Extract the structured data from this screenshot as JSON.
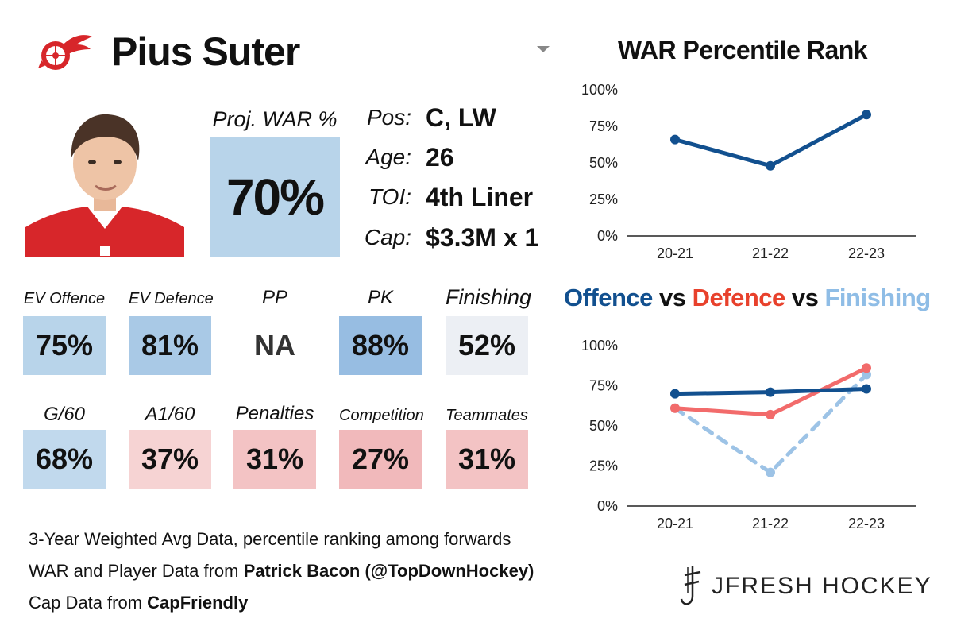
{
  "player": {
    "name": "Pius Suter",
    "team_logo": "red-wings-logo-icon",
    "headshot": "player-headshot"
  },
  "proj_war": {
    "label": "Proj. WAR %",
    "value": "70%",
    "color": "#b8d4ea"
  },
  "info": [
    {
      "label": "Pos:",
      "value": "C, LW"
    },
    {
      "label": "Age:",
      "value": "26"
    },
    {
      "label": "TOI:",
      "value": "4th Liner"
    },
    {
      "label": "Cap:",
      "value": "$3.3M x 1"
    }
  ],
  "tiles_row1": [
    {
      "label": "EV Offence",
      "value": "75%",
      "color": "#b8d4ea"
    },
    {
      "label": "EV Defence",
      "value": "81%",
      "color": "#a9c9e6"
    },
    {
      "label": "PP",
      "value": "NA",
      "color": "#ffffff"
    },
    {
      "label": "PK",
      "value": "88%",
      "color": "#97bde2"
    },
    {
      "label": "Finishing",
      "value": "52%",
      "color": "#eceff4"
    }
  ],
  "tiles_row2": [
    {
      "label": "G/60",
      "value": "68%",
      "color": "#c1d9ed"
    },
    {
      "label": "A1/60",
      "value": "37%",
      "color": "#f6d3d3"
    },
    {
      "label": "Penalties",
      "value": "31%",
      "color": "#f3c3c4"
    },
    {
      "label": "Competition",
      "value": "27%",
      "color": "#f1b9bb"
    },
    {
      "label": "Teammates",
      "value": "31%",
      "color": "#f3c3c4"
    }
  ],
  "footnotes": {
    "line1": "3-Year Weighted Avg Data, percentile ranking among forwards",
    "line2_prefix": "WAR and Player Data from ",
    "line2_bold": "Patrick Bacon (@TopDownHockey)",
    "line3_prefix": "Cap Data from ",
    "line3_bold": "CapFriendly"
  },
  "brand": {
    "text": "JFRESH HOCKEY",
    "icon": "jfresh-logo-icon"
  },
  "colors": {
    "offence": "#12508f",
    "defence": "#f26b6b",
    "finishing": "#9dc3e6",
    "offence_title": "#12508f",
    "defence_title": "#e8412c",
    "finishing_title": "#8fbde6"
  },
  "chart_data": [
    {
      "type": "line",
      "title": "WAR Percentile Rank",
      "categories": [
        "20-21",
        "21-22",
        "22-23"
      ],
      "series": [
        {
          "name": "WAR",
          "values": [
            66,
            48,
            83
          ]
        }
      ],
      "ylim": [
        0,
        100
      ],
      "yticks": [
        "0%",
        "25%",
        "50%",
        "75%",
        "100%"
      ],
      "xlabel": "",
      "ylabel": ""
    },
    {
      "type": "line",
      "title_parts": [
        "Offence",
        " vs ",
        "Defence",
        " vs ",
        "Finishing"
      ],
      "categories": [
        "20-21",
        "21-22",
        "22-23"
      ],
      "series": [
        {
          "name": "Offence",
          "values": [
            70,
            71,
            73
          ]
        },
        {
          "name": "Defence",
          "values": [
            61,
            57,
            86
          ]
        },
        {
          "name": "Finishing",
          "values": [
            61,
            21,
            82
          ]
        }
      ],
      "ylim": [
        0,
        100
      ],
      "yticks": [
        "0%",
        "25%",
        "50%",
        "75%",
        "100%"
      ],
      "xlabel": "",
      "ylabel": ""
    }
  ]
}
